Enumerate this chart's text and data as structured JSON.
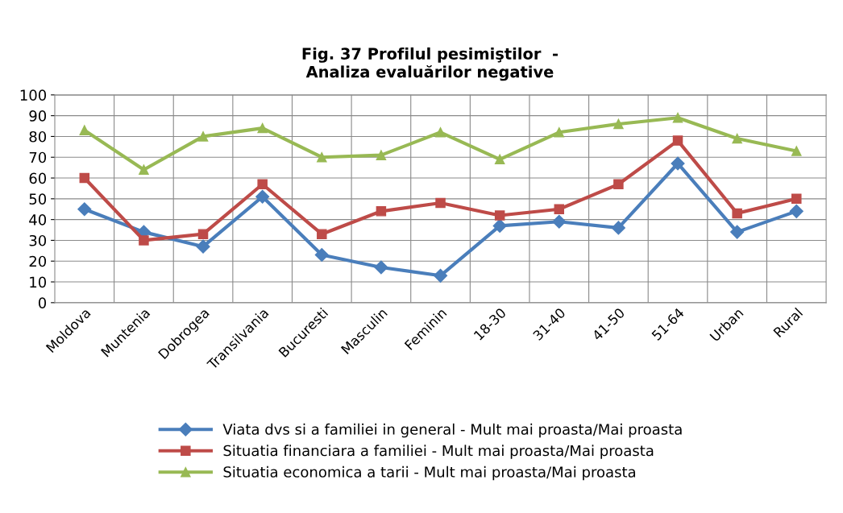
{
  "chart_data": {
    "type": "line",
    "title": "Fig. 37 Profilul pesimiştilor  -\nAnaliza evaluărilor negative",
    "categories": [
      "Moldova",
      "Muntenia",
      "Dobrogea",
      "Transilvania",
      "Bucuresti",
      "Masculin",
      "Feminin",
      "18-30",
      "31-40",
      "41-50",
      "51-64",
      "Urban",
      "Rural"
    ],
    "series": [
      {
        "name": "Viata dvs si a familiei in general - Mult mai proasta/Mai proasta",
        "color": "#4a7ebb",
        "marker": "diamond",
        "values": [
          45,
          34,
          27,
          51,
          23,
          17,
          13,
          37,
          39,
          36,
          67,
          34,
          44
        ]
      },
      {
        "name": "Situatia financiara a familiei - Mult mai proasta/Mai proasta",
        "color": "#be4b48",
        "marker": "square",
        "values": [
          60,
          30,
          33,
          57,
          33,
          44,
          48,
          42,
          45,
          57,
          78,
          43,
          50
        ]
      },
      {
        "name": "Situatia economica a tarii - Mult mai proasta/Mai proasta",
        "color": "#98b954",
        "marker": "triangle",
        "values": [
          83,
          64,
          80,
          84,
          70,
          71,
          82,
          69,
          82,
          86,
          89,
          79,
          73
        ]
      }
    ],
    "ylim": [
      0,
      100
    ],
    "yticks": [
      0,
      10,
      20,
      30,
      40,
      50,
      60,
      70,
      80,
      90,
      100
    ],
    "grid": true,
    "legend": "bottom",
    "line_style": "solid"
  }
}
